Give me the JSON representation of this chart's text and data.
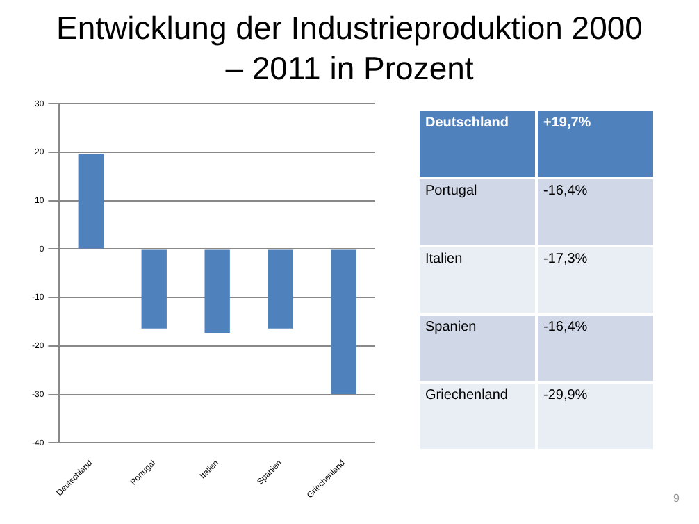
{
  "chart_data": [
    {
      "type": "bar",
      "title": "Entwicklung der Industrieproduktion 2000 – 2011 in Prozent",
      "categories": [
        "Deutschland",
        "Portugal",
        "Italien",
        "Spanien",
        "Griechenland"
      ],
      "values": [
        19.7,
        -16.4,
        -17.3,
        -16.4,
        -29.9
      ],
      "color": "#4f81bd",
      "ylim": [
        -40,
        30
      ],
      "yticks": [
        -40,
        -30,
        -20,
        -10,
        0,
        10,
        20,
        30
      ],
      "grid": "y",
      "annotations": [
        "9"
      ]
    },
    {
      "type": "other",
      "annotations": [
        "Deutschland",
        "+19,7%",
        "Portugal",
        "-16,4%",
        "Italien",
        "-17,3%",
        "Spanien",
        "-16,4%",
        "Griechenland",
        "-29,9%"
      ]
    }
  ]
}
